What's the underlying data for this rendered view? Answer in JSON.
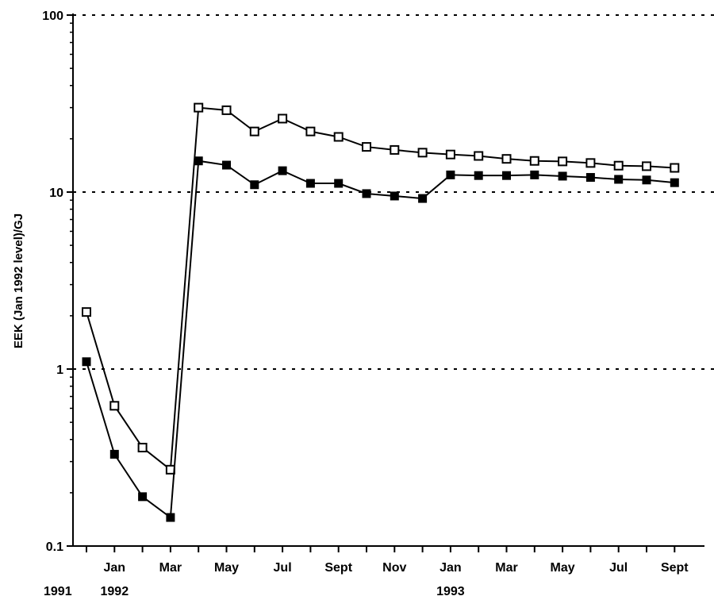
{
  "chart_data": {
    "type": "line",
    "title": "",
    "xlabel": "",
    "ylabel": "EEK (Jan 1992 level)/GJ",
    "yscale": "log",
    "ylim": [
      0.1,
      100
    ],
    "y_ticks": [
      "100",
      "10",
      "1",
      "0.1"
    ],
    "grid": "horizontal dotted at 1, 10, 100",
    "x_tick_labels": [
      "Jan",
      "Mar",
      "May",
      "Jul",
      "Sept",
      "Nov",
      "Jan",
      "Mar",
      "May",
      "Jul",
      "Sept"
    ],
    "year_labels": [
      "1991",
      "1992",
      "1993"
    ],
    "x": [
      "1991-11",
      "1992-01",
      "1992-02",
      "1992-03",
      "1992-04",
      "1992-05",
      "1992-06",
      "1992-07",
      "1992-08",
      "1992-09",
      "1992-10",
      "1992-11",
      "1992-12",
      "1993-01",
      "1993-02",
      "1993-03",
      "1993-04",
      "1993-05",
      "1993-06",
      "1993-07",
      "1993-08",
      "1993-09"
    ],
    "series": [
      {
        "marker": "open-square",
        "color": "#000000",
        "values": [
          2.1,
          0.62,
          0.36,
          0.27,
          30,
          29,
          22,
          26,
          22,
          20.5,
          18,
          17.3,
          16.7,
          16.3,
          16.0,
          15.4,
          15.0,
          14.9,
          14.6,
          14.1,
          14.0,
          13.7
        ]
      },
      {
        "marker": "filled-square",
        "color": "#000000",
        "values": [
          1.1,
          0.33,
          0.19,
          0.145,
          15,
          14.2,
          11,
          13.2,
          11.2,
          11.2,
          9.8,
          9.5,
          9.2,
          12.5,
          12.4,
          12.4,
          12.5,
          12.3,
          12.1,
          11.8,
          11.7,
          11.3
        ]
      }
    ]
  }
}
